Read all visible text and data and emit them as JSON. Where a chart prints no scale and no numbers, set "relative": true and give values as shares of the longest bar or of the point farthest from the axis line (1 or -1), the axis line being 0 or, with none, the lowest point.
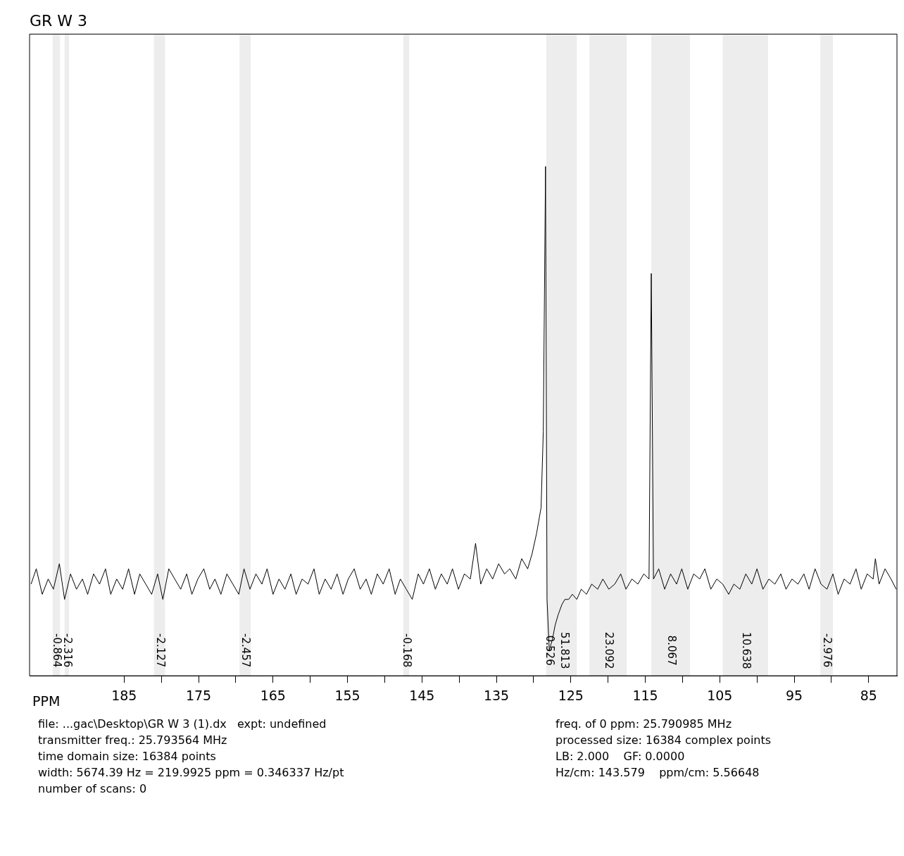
{
  "chart_data": {
    "type": "line",
    "title": "GR W 3",
    "xlabel": "PPM",
    "relative": true,
    "grid": false,
    "legend": false,
    "marker": "none",
    "line_style": "solid",
    "xlim": [
      197.7,
      81.2
    ],
    "xticks": [
      185,
      {
        "value": 180,
        "label": null
      },
      175,
      {
        "value": 170,
        "label": null
      },
      165,
      {
        "value": 160,
        "label": null
      },
      155,
      {
        "value": 150,
        "label": null
      },
      145,
      {
        "value": 140,
        "label": null
      },
      135,
      {
        "value": 130,
        "label": null
      },
      125,
      {
        "value": 120,
        "label": null
      },
      115,
      {
        "value": 110,
        "label": null
      },
      105,
      {
        "value": 100,
        "label": null
      },
      95,
      {
        "value": 90,
        "label": null
      },
      85
    ],
    "series": [
      {
        "color": "#000000",
        "x": [
          197.5,
          196.8,
          196.0,
          195.2,
          194.5,
          193.7,
          193.0,
          192.2,
          191.4,
          190.6,
          189.9,
          189.1,
          188.3,
          187.5,
          186.8,
          186.0,
          185.2,
          184.4,
          183.6,
          182.9,
          182.1,
          181.3,
          180.5,
          179.8,
          179.0,
          178.2,
          177.4,
          176.6,
          175.9,
          175.1,
          174.3,
          173.5,
          172.8,
          172.0,
          171.2,
          170.4,
          169.6,
          168.9,
          168.1,
          167.3,
          166.5,
          165.8,
          165.0,
          164.2,
          163.4,
          162.6,
          161.9,
          161.1,
          160.3,
          159.5,
          158.8,
          158.0,
          157.2,
          156.4,
          155.6,
          154.9,
          154.1,
          153.3,
          152.5,
          151.8,
          151.0,
          150.2,
          149.4,
          148.6,
          147.9,
          147.1,
          146.3,
          145.5,
          144.8,
          144.0,
          143.2,
          142.4,
          141.6,
          140.9,
          140.1,
          139.3,
          138.5,
          137.8,
          137.1,
          136.3,
          135.5,
          134.7,
          133.9,
          133.2,
          132.4,
          131.6,
          130.8,
          130.2,
          129.6,
          129.0,
          128.7,
          128.4,
          128.2,
          127.9,
          127.5,
          127.1,
          126.7,
          126.2,
          125.8,
          125.3,
          124.8,
          124.2,
          123.6,
          122.9,
          122.2,
          121.4,
          120.7,
          119.9,
          119.1,
          118.3,
          117.6,
          116.8,
          116.0,
          115.2,
          114.5,
          114.2,
          113.9,
          113.2,
          112.4,
          111.6,
          110.8,
          110.1,
          109.3,
          108.5,
          107.7,
          107.0,
          106.2,
          105.4,
          104.6,
          103.8,
          103.1,
          102.3,
          101.5,
          100.7,
          100.0,
          99.2,
          98.4,
          97.6,
          96.8,
          96.1,
          95.3,
          94.5,
          93.7,
          93.0,
          92.2,
          91.4,
          90.6,
          89.8,
          89.1,
          88.3,
          87.5,
          86.7,
          86.0,
          85.2,
          84.4,
          84.1,
          83.6,
          82.8,
          82.0,
          81.3
        ],
        "values": [
          0.18,
          0.21,
          0.16,
          0.19,
          0.17,
          0.22,
          0.15,
          0.2,
          0.17,
          0.19,
          0.16,
          0.2,
          0.18,
          0.21,
          0.16,
          0.19,
          0.17,
          0.21,
          0.16,
          0.2,
          0.18,
          0.16,
          0.2,
          0.15,
          0.21,
          0.19,
          0.17,
          0.2,
          0.16,
          0.19,
          0.21,
          0.17,
          0.19,
          0.16,
          0.2,
          0.18,
          0.16,
          0.21,
          0.17,
          0.2,
          0.18,
          0.21,
          0.16,
          0.19,
          0.17,
          0.2,
          0.16,
          0.19,
          0.18,
          0.21,
          0.16,
          0.19,
          0.17,
          0.2,
          0.16,
          0.19,
          0.21,
          0.17,
          0.19,
          0.16,
          0.2,
          0.18,
          0.21,
          0.16,
          0.19,
          0.17,
          0.15,
          0.2,
          0.18,
          0.21,
          0.17,
          0.2,
          0.18,
          0.21,
          0.17,
          0.2,
          0.19,
          0.26,
          0.18,
          0.21,
          0.19,
          0.22,
          0.2,
          0.21,
          0.19,
          0.23,
          0.21,
          0.24,
          0.28,
          0.33,
          0.48,
          1.0,
          0.15,
          0.05,
          0.07,
          0.1,
          0.12,
          0.14,
          0.15,
          0.15,
          0.16,
          0.15,
          0.17,
          0.16,
          0.18,
          0.17,
          0.19,
          0.17,
          0.18,
          0.2,
          0.17,
          0.19,
          0.18,
          0.2,
          0.19,
          0.79,
          0.19,
          0.21,
          0.17,
          0.2,
          0.18,
          0.21,
          0.17,
          0.2,
          0.19,
          0.21,
          0.17,
          0.19,
          0.18,
          0.16,
          0.18,
          0.17,
          0.2,
          0.18,
          0.21,
          0.17,
          0.19,
          0.18,
          0.2,
          0.17,
          0.19,
          0.18,
          0.2,
          0.17,
          0.21,
          0.18,
          0.17,
          0.2,
          0.16,
          0.19,
          0.18,
          0.21,
          0.17,
          0.2,
          0.19,
          0.23,
          0.18,
          0.21,
          0.19,
          0.17
        ]
      }
    ],
    "bands": [
      {
        "axis": "x",
        "from": 194.6,
        "to": 193.6,
        "label": "-0.864"
      },
      {
        "axis": "x",
        "from": 193.0,
        "to": 192.4,
        "label": "-2.316"
      },
      {
        "axis": "x",
        "from": 181.0,
        "to": 179.5,
        "label": "-2.127"
      },
      {
        "axis": "x",
        "from": 169.5,
        "to": 168.0,
        "label": "-2.457"
      },
      {
        "axis": "x",
        "from": 147.5,
        "to": 146.7,
        "label": "-0.168"
      },
      {
        "axis": "x",
        "from": 128.3,
        "to": 127.6,
        "label": "0.526"
      },
      {
        "axis": "x",
        "from": 127.6,
        "to": 124.2,
        "label": "51.813"
      },
      {
        "axis": "x",
        "from": 122.5,
        "to": 117.5,
        "label": "23.092"
      },
      {
        "axis": "x",
        "from": 114.2,
        "to": 109.0,
        "label": "8.067"
      },
      {
        "axis": "x",
        "from": 104.6,
        "to": 98.5,
        "label": "10.638"
      },
      {
        "axis": "x",
        "from": 91.5,
        "to": 89.8,
        "label": "-2.976"
      }
    ],
    "annotations": [
      "file: ...gac\\Desktop\\GR W 3 (1).dx   expt: undefined",
      "transmitter freq.: 25.793564 MHz",
      "time domain size: 16384 points",
      "width: 5674.39 Hz = 219.9925 ppm = 0.346337 Hz/pt",
      "number of scans: 0",
      "freq. of 0 ppm: 25.790985 MHz",
      "processed size: 16384 complex points",
      "LB: 2.000    GF: 0.0000",
      "Hz/cm: 143.579    ppm/cm: 5.56648"
    ]
  }
}
